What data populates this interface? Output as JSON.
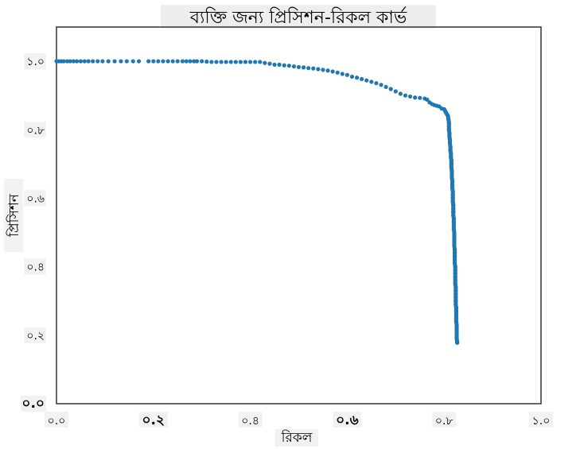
{
  "chart_data": {
    "type": "scatter",
    "title": "ব্যক্তি জন্য প্রিসিশন-রিকল কার্ভ",
    "xlabel": "রিকল",
    "ylabel": "প্রিসিশন",
    "xlim": [
      0.0,
      1.0
    ],
    "ylim": [
      0.0,
      1.1
    ],
    "x_ticks": [
      {
        "value": 0.0,
        "label": "০.০",
        "emphasis": false
      },
      {
        "value": 0.2,
        "label": "০.২",
        "emphasis": true
      },
      {
        "value": 0.4,
        "label": "০.৪",
        "emphasis": false
      },
      {
        "value": 0.6,
        "label": "০.৬",
        "emphasis": true
      },
      {
        "value": 0.8,
        "label": "০.৮",
        "emphasis": false
      },
      {
        "value": 1.0,
        "label": "১.০",
        "emphasis": false
      }
    ],
    "y_ticks": [
      {
        "value": 0.0,
        "label": "০.০",
        "emphasis": true
      },
      {
        "value": 0.2,
        "label": "০.২",
        "emphasis": false
      },
      {
        "value": 0.4,
        "label": "০.৪",
        "emphasis": false
      },
      {
        "value": 0.6,
        "label": "০.৬",
        "emphasis": false
      },
      {
        "value": 0.8,
        "label": "০.৮",
        "emphasis": false
      },
      {
        "value": 1.0,
        "label": "১.০",
        "emphasis": false
      }
    ],
    "grid": false,
    "marker_color": "#1f77b4",
    "points": [
      [
        0.0,
        1.0
      ],
      [
        0.005,
        1.0
      ],
      [
        0.01,
        1.0
      ],
      [
        0.015,
        1.0
      ],
      [
        0.022,
        1.0
      ],
      [
        0.028,
        1.0
      ],
      [
        0.035,
        1.0
      ],
      [
        0.042,
        1.0
      ],
      [
        0.05,
        1.0
      ],
      [
        0.058,
        1.0
      ],
      [
        0.066,
        1.0
      ],
      [
        0.075,
        1.0
      ],
      [
        0.085,
        1.0
      ],
      [
        0.095,
        1.0
      ],
      [
        0.107,
        1.0
      ],
      [
        0.12,
        1.0
      ],
      [
        0.133,
        1.0
      ],
      [
        0.145,
        1.0
      ],
      [
        0.158,
        1.0
      ],
      [
        0.17,
        1.0
      ],
      [
        0.19,
        1.0
      ],
      [
        0.2,
        1.0
      ],
      [
        0.21,
        1.0
      ],
      [
        0.22,
        1.0
      ],
      [
        0.23,
        1.0
      ],
      [
        0.24,
        1.0
      ],
      [
        0.25,
        1.0
      ],
      [
        0.26,
        1.0
      ],
      [
        0.268,
        1.0
      ],
      [
        0.276,
        1.0
      ],
      [
        0.284,
        1.0
      ],
      [
        0.29,
        1.0
      ],
      [
        0.3,
        1.0
      ],
      [
        0.31,
        0.999
      ],
      [
        0.32,
        0.998
      ],
      [
        0.33,
        0.998
      ],
      [
        0.34,
        0.998
      ],
      [
        0.35,
        0.998
      ],
      [
        0.36,
        0.998
      ],
      [
        0.37,
        0.998
      ],
      [
        0.38,
        0.998
      ],
      [
        0.39,
        0.998
      ],
      [
        0.4,
        0.998
      ],
      [
        0.41,
        0.998
      ],
      [
        0.42,
        0.998
      ],
      [
        0.43,
        0.995
      ],
      [
        0.44,
        0.993
      ],
      [
        0.45,
        0.99
      ],
      [
        0.46,
        0.99
      ],
      [
        0.47,
        0.988
      ],
      [
        0.48,
        0.987
      ],
      [
        0.49,
        0.985
      ],
      [
        0.5,
        0.983
      ],
      [
        0.51,
        0.982
      ],
      [
        0.52,
        0.98
      ],
      [
        0.53,
        0.979
      ],
      [
        0.54,
        0.977
      ],
      [
        0.55,
        0.975
      ],
      [
        0.56,
        0.973
      ],
      [
        0.57,
        0.97
      ],
      [
        0.58,
        0.967
      ],
      [
        0.59,
        0.963
      ],
      [
        0.6,
        0.96
      ],
      [
        0.61,
        0.955
      ],
      [
        0.62,
        0.952
      ],
      [
        0.63,
        0.948
      ],
      [
        0.64,
        0.944
      ],
      [
        0.65,
        0.94
      ],
      [
        0.66,
        0.936
      ],
      [
        0.67,
        0.931
      ],
      [
        0.68,
        0.925
      ],
      [
        0.69,
        0.919
      ],
      [
        0.7,
        0.912
      ],
      [
        0.71,
        0.905
      ],
      [
        0.72,
        0.9
      ],
      [
        0.73,
        0.897
      ],
      [
        0.74,
        0.894
      ],
      [
        0.75,
        0.893
      ],
      [
        0.76,
        0.891
      ],
      [
        0.765,
        0.888
      ],
      [
        0.77,
        0.88
      ],
      [
        0.775,
        0.875
      ],
      [
        0.78,
        0.872
      ],
      [
        0.785,
        0.87
      ],
      [
        0.79,
        0.868
      ],
      [
        0.795,
        0.862
      ],
      [
        0.8,
        0.86
      ],
      [
        0.802,
        0.855
      ],
      [
        0.804,
        0.85
      ],
      [
        0.806,
        0.845
      ],
      [
        0.808,
        0.84
      ],
      [
        0.809,
        0.83
      ],
      [
        0.81,
        0.82
      ],
      [
        0.81,
        0.81
      ],
      [
        0.81,
        0.8
      ],
      [
        0.811,
        0.79
      ],
      [
        0.811,
        0.78
      ],
      [
        0.812,
        0.77
      ],
      [
        0.812,
        0.76
      ],
      [
        0.813,
        0.75
      ],
      [
        0.813,
        0.74
      ],
      [
        0.814,
        0.73
      ],
      [
        0.814,
        0.72
      ],
      [
        0.815,
        0.71
      ],
      [
        0.815,
        0.7
      ],
      [
        0.815,
        0.69
      ],
      [
        0.816,
        0.68
      ],
      [
        0.816,
        0.67
      ],
      [
        0.816,
        0.66
      ],
      [
        0.817,
        0.65
      ],
      [
        0.817,
        0.64
      ],
      [
        0.817,
        0.63
      ],
      [
        0.818,
        0.62
      ],
      [
        0.818,
        0.61
      ],
      [
        0.818,
        0.6
      ],
      [
        0.818,
        0.59
      ],
      [
        0.819,
        0.58
      ],
      [
        0.819,
        0.57
      ],
      [
        0.819,
        0.56
      ],
      [
        0.819,
        0.55
      ],
      [
        0.82,
        0.54
      ],
      [
        0.82,
        0.53
      ],
      [
        0.82,
        0.52
      ],
      [
        0.82,
        0.51
      ],
      [
        0.821,
        0.5
      ],
      [
        0.821,
        0.49
      ],
      [
        0.821,
        0.48
      ],
      [
        0.821,
        0.47
      ],
      [
        0.821,
        0.46
      ],
      [
        0.822,
        0.45
      ],
      [
        0.822,
        0.44
      ],
      [
        0.822,
        0.43
      ],
      [
        0.822,
        0.42
      ],
      [
        0.822,
        0.41
      ],
      [
        0.823,
        0.4
      ],
      [
        0.823,
        0.39
      ],
      [
        0.823,
        0.38
      ],
      [
        0.823,
        0.37
      ],
      [
        0.823,
        0.36
      ],
      [
        0.823,
        0.35
      ],
      [
        0.824,
        0.34
      ],
      [
        0.824,
        0.33
      ],
      [
        0.824,
        0.32
      ],
      [
        0.824,
        0.31
      ],
      [
        0.824,
        0.3
      ],
      [
        0.824,
        0.29
      ],
      [
        0.825,
        0.28
      ],
      [
        0.825,
        0.27
      ],
      [
        0.825,
        0.26
      ],
      [
        0.825,
        0.25
      ],
      [
        0.825,
        0.24
      ],
      [
        0.826,
        0.23
      ],
      [
        0.826,
        0.22
      ],
      [
        0.826,
        0.21
      ],
      [
        0.826,
        0.2
      ],
      [
        0.826,
        0.19
      ],
      [
        0.827,
        0.18
      ],
      [
        0.827,
        0.178
      ]
    ]
  }
}
